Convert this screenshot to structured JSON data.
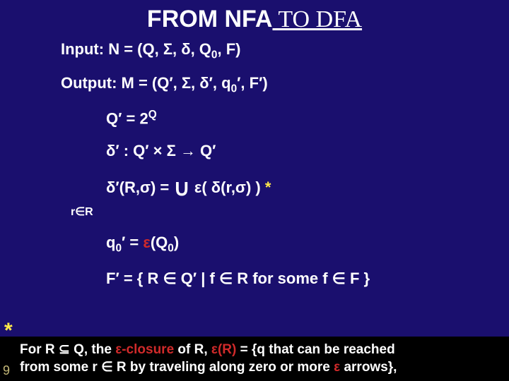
{
  "title": {
    "part1": "FROM NFA",
    "part2": " TO DFA"
  },
  "io": {
    "input": "Input: N = (Q, Σ, δ, Q",
    "input_sub": "0",
    "input_tail": ", F)",
    "output": "Output: M = (Q′, Σ, δ′, q",
    "output_sub": "0",
    "output_tail": "′, F′)"
  },
  "defs": {
    "qprime": "Q′ = 2",
    "qprime_sup": "Q",
    "delta_type": "δ′ : Q′ × Σ → Q′",
    "delta_def_lhs": "δ′(R,σ) = ",
    "delta_def_rhs": " ε( δ(r,σ) )  ",
    "star": "*",
    "rR": "r∈R",
    "q0_lhs": "q",
    "q0_sub": "0",
    "q0_mid": "′ = ",
    "q0_eps": "ε",
    "q0_tail": "(Q",
    "q0_sub2": "0",
    "q0_close": ")",
    "fprime": "F′ = { R ∈ Q′ | f ∈ R for some f ∈ F }"
  },
  "footer": {
    "l1a": "For R ⊆ Q, the ",
    "l1b": "ε-closure",
    "l1c": " of R, ",
    "l1d": "ε(R)",
    "l1e": " = {q that can be reached",
    "l2a": "from some r ∈ R by traveling along zero or more ",
    "l2b": "ε",
    "l2c": " arrows},"
  },
  "page": "9",
  "left_star": "*"
}
